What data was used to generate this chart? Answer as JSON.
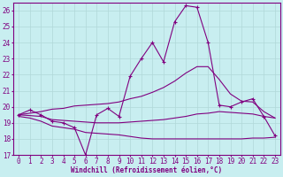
{
  "x": [
    0,
    1,
    2,
    3,
    4,
    5,
    6,
    7,
    8,
    9,
    10,
    11,
    12,
    13,
    14,
    15,
    16,
    17,
    18,
    19,
    20,
    21,
    22,
    23
  ],
  "series_jagged": [
    19.5,
    19.8,
    19.5,
    19.1,
    19.0,
    18.7,
    17.0,
    19.5,
    19.9,
    19.4,
    21.9,
    23.0,
    24.0,
    22.8,
    25.3,
    26.3,
    26.2,
    24.0,
    20.1,
    20.0,
    20.3,
    20.5,
    19.4,
    18.2
  ],
  "series_rising": [
    19.5,
    19.6,
    19.7,
    19.85,
    19.9,
    20.05,
    20.1,
    20.15,
    20.2,
    20.3,
    20.5,
    20.65,
    20.9,
    21.2,
    21.6,
    22.1,
    22.5,
    22.5,
    21.7,
    20.8,
    20.35,
    20.3,
    19.7,
    19.3
  ],
  "series_mid_flat": [
    19.5,
    19.45,
    19.4,
    19.2,
    19.15,
    19.1,
    19.05,
    19.0,
    19.0,
    19.0,
    19.05,
    19.1,
    19.15,
    19.2,
    19.3,
    19.4,
    19.55,
    19.6,
    19.7,
    19.65,
    19.6,
    19.55,
    19.4,
    19.3
  ],
  "series_bottom": [
    19.4,
    19.3,
    19.1,
    18.8,
    18.7,
    18.6,
    18.4,
    18.35,
    18.3,
    18.25,
    18.15,
    18.05,
    18.0,
    18.0,
    18.0,
    18.0,
    18.0,
    18.0,
    18.0,
    18.0,
    18.0,
    18.05,
    18.05,
    18.1
  ],
  "color": "#800080",
  "bg_color": "#c8eef0",
  "grid_color": "#b0d8d8",
  "ylim_min": 17,
  "ylim_max": 26.5,
  "yticks": [
    17,
    18,
    19,
    20,
    21,
    22,
    23,
    24,
    25,
    26
  ],
  "xticks": [
    0,
    1,
    2,
    3,
    4,
    5,
    6,
    7,
    8,
    9,
    10,
    11,
    12,
    13,
    14,
    15,
    16,
    17,
    18,
    19,
    20,
    21,
    22,
    23
  ],
  "xlabel": "Windchill (Refroidissement éolien,°C)",
  "xlabel_fontsize": 5.5,
  "tick_fontsize": 5.5
}
